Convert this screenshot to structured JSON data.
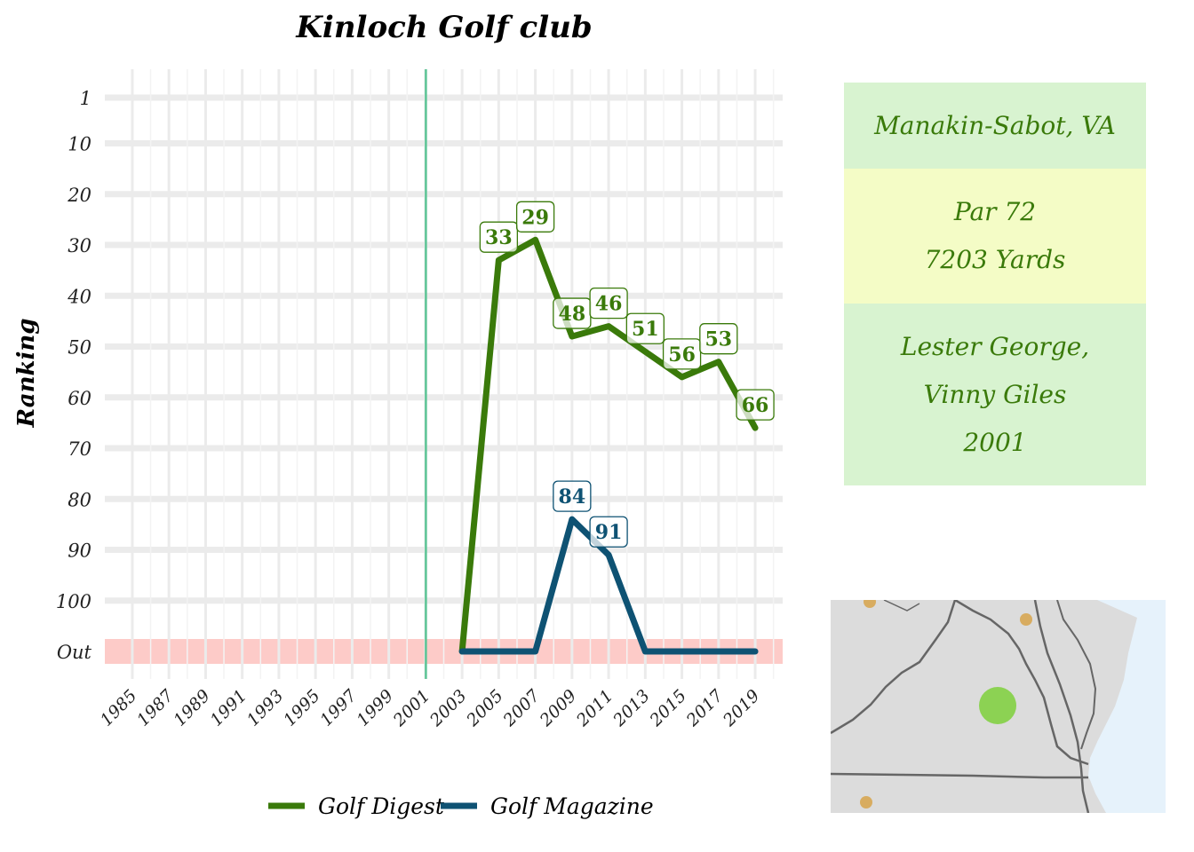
{
  "chart_data": {
    "type": "line",
    "title": "Kinloch Golf club",
    "ylabel": "Ranking",
    "xlabel": "",
    "x_tick_labels": [
      "1985",
      "1987",
      "1989",
      "1991",
      "1993",
      "1995",
      "1997",
      "1999",
      "2001",
      "2003",
      "2005",
      "2007",
      "2009",
      "2011",
      "2013",
      "2015",
      "2017",
      "2019"
    ],
    "y_tick_labels": [
      "1",
      "10",
      "20",
      "30",
      "40",
      "50",
      "60",
      "70",
      "80",
      "90",
      "100",
      "Out"
    ],
    "xlim": [
      1983.5,
      2020.5
    ],
    "ylim": [
      1,
      110
    ],
    "out_value": 110,
    "out_band_label": "Out",
    "opened_year": 2001,
    "series": [
      {
        "name": "Golf Digest",
        "color": "#3a7a0a",
        "x": [
          2003,
          2005,
          2007,
          2009,
          2011,
          2013,
          2015,
          2017,
          2019
        ],
        "y": [
          "Out",
          33,
          29,
          48,
          46,
          51,
          56,
          53,
          66
        ],
        "labels": [
          "",
          "33",
          "29",
          "48",
          "46",
          "51",
          "56",
          "53",
          "66"
        ]
      },
      {
        "name": "Golf Magazine",
        "color": "#0e5273",
        "x": [
          2003,
          2005,
          2007,
          2009,
          2011,
          2013,
          2015,
          2017,
          2019
        ],
        "y": [
          "Out",
          "Out",
          "Out",
          84,
          91,
          "Out",
          "Out",
          "Out",
          "Out"
        ],
        "labels": [
          "",
          "",
          "",
          "84",
          "91",
          "",
          "",
          "",
          ""
        ]
      }
    ],
    "legend": {
      "placement": "bottom",
      "items": [
        "Golf Digest",
        "Golf Magazine"
      ]
    },
    "grid": true
  },
  "info": {
    "location": "Manakin-Sabot, VA",
    "par": "Par 72",
    "yards": "7203 Yards",
    "architect_line1": "Lester George,",
    "architect_line2": "Vinny Giles",
    "year": "2001",
    "colors": {
      "green_block": "#d8f3d0",
      "yellow_block": "#f4fcc6",
      "text": "#3a7a0a"
    }
  },
  "map": {
    "land_color": "#dcdcdc",
    "water_color": "#e6f2fb",
    "border_color": "#666666",
    "course_marker_color": "#7ed03b",
    "other_marker_color": "#d7a34a"
  }
}
